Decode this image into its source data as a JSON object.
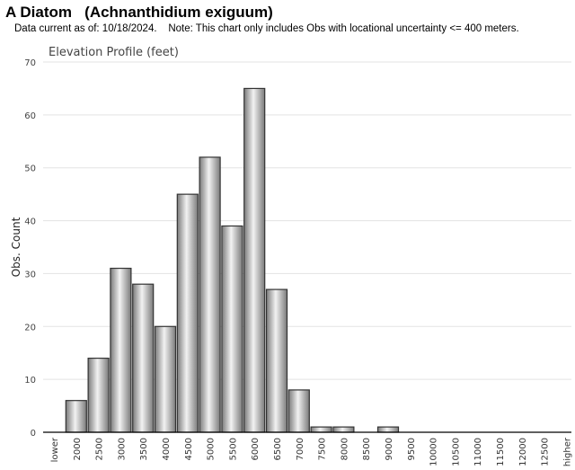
{
  "header": {
    "title": "A Diatom   (Achnanthidium exiguum)",
    "note": "Data current as of: 10/18/2024.    Note: This chart only includes Obs with locational uncertainty <= 400 meters."
  },
  "colors": {
    "bar_fill_dark": "#7a7a7a",
    "bar_fill_light": "#f2f2f2",
    "bar_stroke": "#333333",
    "grid": "#e3e3e3",
    "axis": "#000000"
  },
  "chart_data": {
    "type": "bar",
    "title": "Elevation Profile (feet)",
    "xlabel": "",
    "ylabel": "Obs. Count",
    "ylim": [
      0,
      70
    ],
    "yticks": [
      0,
      10,
      20,
      30,
      40,
      50,
      60,
      70
    ],
    "grid": true,
    "categories": [
      "lower",
      "2000",
      "2500",
      "3000",
      "3500",
      "4000",
      "4500",
      "5000",
      "5500",
      "6000",
      "6500",
      "7000",
      "7500",
      "8000",
      "8500",
      "9000",
      "9500",
      "10000",
      "10500",
      "11000",
      "11500",
      "12000",
      "12500",
      "higher"
    ],
    "values": [
      0,
      6,
      14,
      31,
      28,
      20,
      45,
      52,
      39,
      65,
      27,
      8,
      1,
      1,
      0,
      1,
      0,
      0,
      0,
      0,
      0,
      0,
      0,
      0
    ]
  }
}
